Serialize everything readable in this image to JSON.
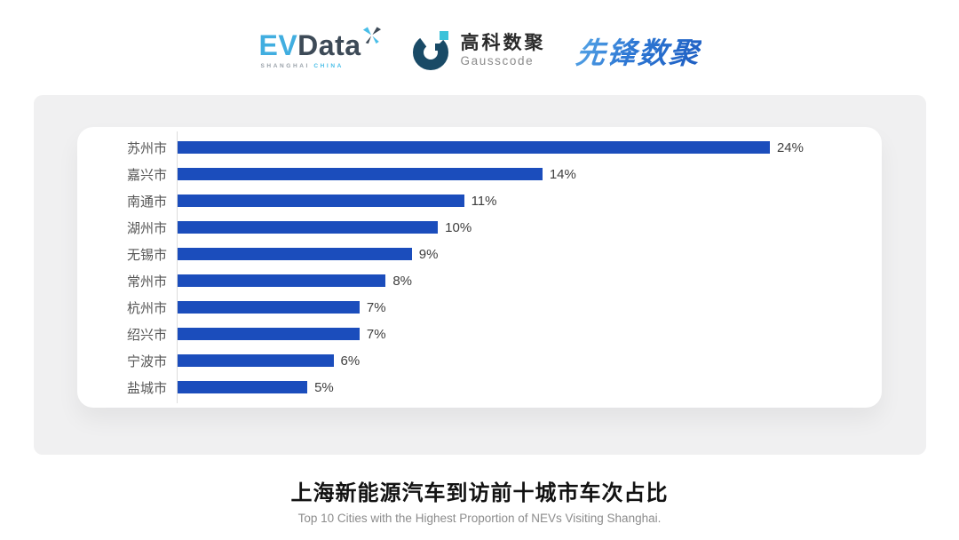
{
  "header": {
    "evdata": {
      "ev": "EV",
      "data": "Data",
      "x_icon": "pinwheel-x",
      "sub_left": "SHANGHAI",
      "sub_right": "CHINA"
    },
    "gausscode": {
      "icon": "g-ring-mark",
      "cn": "高科数聚",
      "en": "Gausscode"
    },
    "xianfeng": {
      "text": "先锋数聚"
    }
  },
  "chart_data": {
    "type": "bar",
    "orientation": "horizontal",
    "title": "上海新能源汽车到访前十城市车次占比",
    "subtitle": "Top 10 Cities with the Highest Proportion of  NEVs Visiting Shanghai.",
    "categories": [
      "苏州市",
      "嘉兴市",
      "南通市",
      "湖州市",
      "无锡市",
      "常州市",
      "杭州市",
      "绍兴市",
      "宁波市",
      "盐城市"
    ],
    "values": [
      24,
      14,
      11,
      10,
      9,
      8,
      7,
      7,
      6,
      5
    ],
    "value_labels": [
      "24%",
      "14%",
      "11%",
      "10%",
      "9%",
      "8%",
      "7%",
      "7%",
      "6%",
      "5%"
    ],
    "xlim": [
      0,
      24
    ],
    "grid": false,
    "legend": false,
    "bar_color": "#1B4DBC",
    "axis_line_color": "#DCDCDC",
    "category_label_color": "#565656",
    "value_label_color": "#3E3E3E"
  },
  "colors": {
    "page_bg": "#FFFFFF",
    "panel_bg": "#F0F0F1",
    "card_bg": "#FFFFFF",
    "title": "#121212",
    "subtitle": "#8C8C8C",
    "evdata_blue": "#41AEE0",
    "evdata_slate": "#3D4A57",
    "gauss_dark": "#194A66",
    "gauss_teal": "#3CC2D9",
    "xianfeng_blue": "#2F78D2"
  }
}
